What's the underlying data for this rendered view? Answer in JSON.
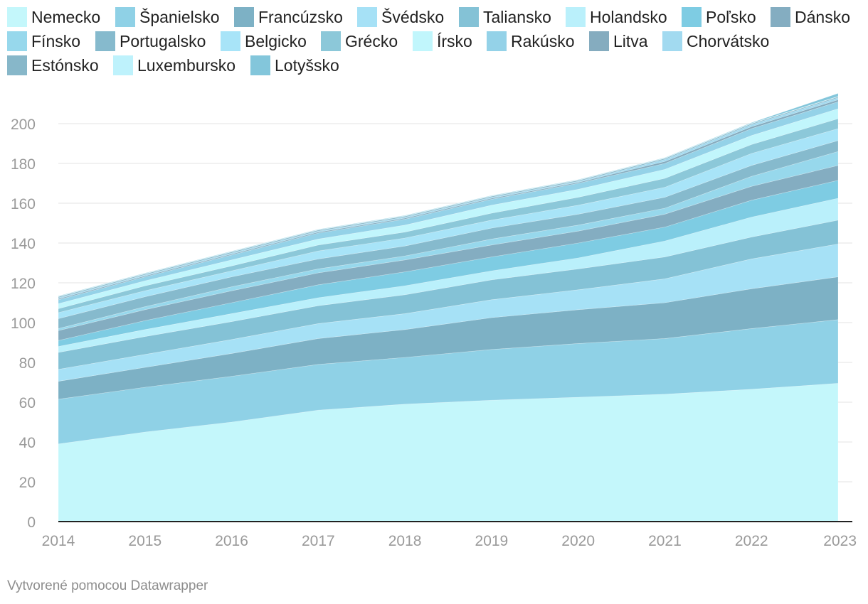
{
  "chart_data": {
    "type": "area",
    "stacked": true,
    "grid": true,
    "legend_position": "top",
    "x": [
      "2014",
      "2015",
      "2016",
      "2017",
      "2018",
      "2019",
      "2020",
      "2021",
      "2022",
      "2023"
    ],
    "ylim": [
      0,
      215
    ],
    "yticks": [
      0,
      20,
      40,
      60,
      80,
      100,
      120,
      140,
      160,
      180,
      200
    ],
    "series": [
      {
        "name": "Nemecko",
        "color": "#c4f7fb",
        "values": [
          39,
          45,
          50,
          56,
          59,
          61,
          62.5,
          64,
          66.5,
          69.5
        ]
      },
      {
        "name": "Španielsko",
        "color": "#8fd1e6",
        "values": [
          22.5,
          22.5,
          23,
          23,
          23.5,
          25.5,
          27,
          28,
          30.5,
          32
        ]
      },
      {
        "name": "Francúzsko",
        "color": "#7db1c5",
        "values": [
          9,
          10,
          11.5,
          13,
          14,
          16,
          17,
          18,
          20,
          21.5
        ]
      },
      {
        "name": "Švédsko",
        "color": "#a6e1f6",
        "values": [
          6,
          6.5,
          7,
          7.5,
          8,
          9,
          10,
          12,
          15,
          16.5
        ]
      },
      {
        "name": "Taliansko",
        "color": "#84c2d6",
        "values": [
          8.5,
          9,
          9,
          9,
          9.5,
          10,
          10.5,
          11,
          11,
          12
        ]
      },
      {
        "name": "Holandsko",
        "color": "#baf0fb",
        "values": [
          3,
          3.5,
          4,
          4,
          4.5,
          4.5,
          5.5,
          8,
          10,
          11
        ]
      },
      {
        "name": "Poľsko",
        "color": "#7ecce3",
        "values": [
          3,
          4.5,
          5.5,
          6.5,
          7,
          7,
          7.5,
          7,
          8.5,
          9
        ]
      },
      {
        "name": "Dánsko",
        "color": "#84adc1",
        "values": [
          5,
          5.5,
          6,
          6,
          6,
          6,
          6,
          6.5,
          7,
          7.5
        ]
      },
      {
        "name": "Fínsko",
        "color": "#97d8ec",
        "values": [
          1,
          1.5,
          2,
          2,
          2,
          3,
          3,
          3,
          5,
          7
        ]
      },
      {
        "name": "Portugalsko",
        "color": "#86bacd",
        "values": [
          5,
          5,
          5,
          5,
          5,
          5.5,
          5.5,
          5.5,
          5.5,
          5.5
        ]
      },
      {
        "name": "Belgicko",
        "color": "#a8e4f8",
        "values": [
          3,
          3,
          3,
          4,
          4,
          4,
          4.5,
          5,
          6,
          6
        ]
      },
      {
        "name": "Grécko",
        "color": "#8cc8d9",
        "values": [
          2,
          2.5,
          2.5,
          3,
          3,
          3.5,
          4,
          4.5,
          4.5,
          5
        ]
      },
      {
        "name": "Írsko",
        "color": "#c1f6fc",
        "values": [
          2.5,
          2.5,
          3,
          3,
          3.5,
          4,
          4,
          4.5,
          4.5,
          5
        ]
      },
      {
        "name": "Rakúsko",
        "color": "#94d2e8",
        "values": [
          2,
          2,
          2.5,
          3,
          3,
          3,
          3,
          3,
          3.5,
          3.5
        ]
      },
      {
        "name": "Litva",
        "color": "#85acbf",
        "values": [
          0.5,
          0.5,
          0.5,
          0.5,
          0.5,
          0.5,
          0.5,
          1,
          1,
          1
        ]
      },
      {
        "name": "Chorvátsko",
        "color": "#a2daf0",
        "values": [
          0.5,
          0.5,
          0.5,
          0.5,
          0.5,
          0.5,
          0.5,
          1,
          1,
          1
        ]
      },
      {
        "name": "Estónsko",
        "color": "#87b7c9",
        "values": [
          0.5,
          0.5,
          0.5,
          0.5,
          0.5,
          0.5,
          0.5,
          0.5,
          0.5,
          0.5
        ]
      },
      {
        "name": "Luxembursko",
        "color": "#bef2fc",
        "values": [
          0.2,
          0.2,
          0.2,
          0.2,
          0.2,
          0.2,
          0.2,
          0.2,
          0.2,
          0.2
        ]
      },
      {
        "name": "Lotyšsko",
        "color": "#83c6db",
        "values": [
          0.2,
          0.2,
          0.2,
          0.2,
          0.2,
          0.2,
          0.2,
          0.2,
          0.3,
          1.5
        ]
      }
    ]
  },
  "credit": "Vytvorené pomocou Datawrapper"
}
